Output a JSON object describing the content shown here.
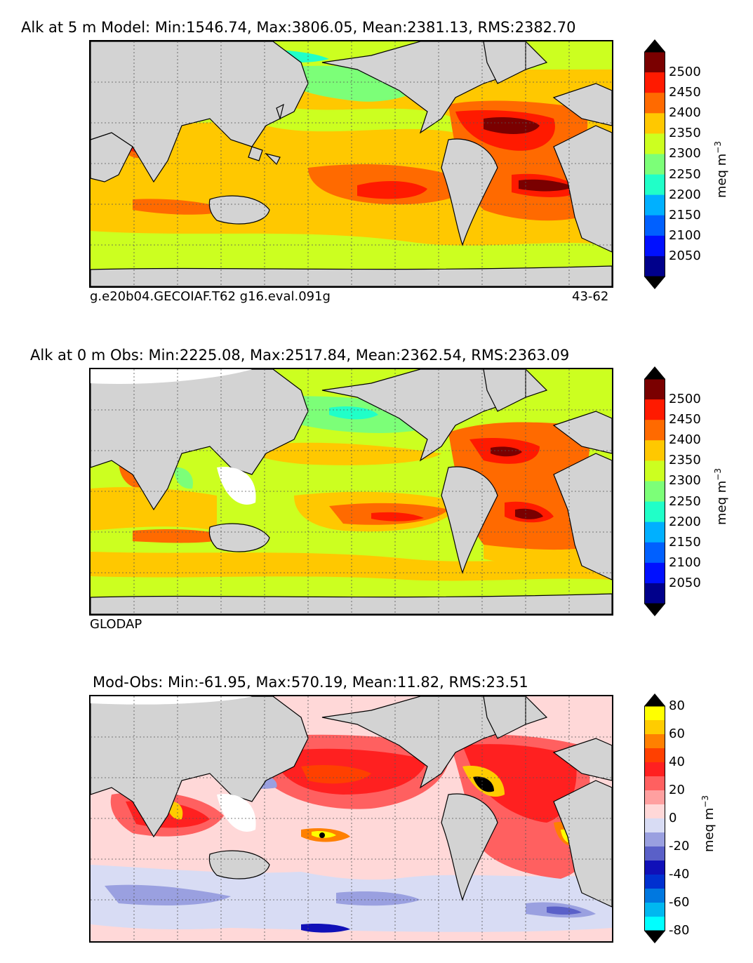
{
  "panels": [
    {
      "title": "Alk at 5 m Model: Min:1546.74, Max:3806.05, Mean:2381.13, RMS:2382.70",
      "caption_left": "g.e20b04.GECOIAF.T62 g16.eval.091g",
      "caption_right": "43-62",
      "colorbar": {
        "label": "meq m",
        "label_exp": "−3",
        "ticks": [
          "2500",
          "2450",
          "2400",
          "2350",
          "2300",
          "2250",
          "2200",
          "2150",
          "2100",
          "2050"
        ],
        "colors": [
          "#7a0000",
          "#ff1a00",
          "#ff6a00",
          "#ffc800",
          "#ccff20",
          "#7cff78",
          "#20ffc8",
          "#00b0ff",
          "#0060ff",
          "#0010ff",
          "#00008b"
        ]
      }
    },
    {
      "title": "Alk at 0 m Obs: Min:2225.08, Max:2517.84, Mean:2362.54, RMS:2363.09",
      "caption_left": "GLODAP",
      "caption_right": "",
      "colorbar": {
        "label": "meq m",
        "label_exp": "−3",
        "ticks": [
          "2500",
          "2450",
          "2400",
          "2350",
          "2300",
          "2250",
          "2200",
          "2150",
          "2100",
          "2050"
        ],
        "colors": [
          "#7a0000",
          "#ff1a00",
          "#ff6a00",
          "#ffc800",
          "#ccff20",
          "#7cff78",
          "#20ffc8",
          "#00b0ff",
          "#0060ff",
          "#0010ff",
          "#00008b"
        ]
      }
    },
    {
      "title": "Mod-Obs: Min:-61.95, Max:570.19, Mean:11.82, RMS:23.51",
      "caption_left": "",
      "caption_right": "",
      "colorbar": {
        "label": "meq m",
        "label_exp": "−3",
        "ticks": [
          "80",
          "60",
          "40",
          "20",
          "0",
          "-20",
          "-40",
          "-60",
          "-80"
        ],
        "colors": [
          "#ffff00",
          "#ffcc00",
          "#ff8000",
          "#ff4000",
          "#ff2020",
          "#ff6060",
          "#ffa0a0",
          "#ffd8d8",
          "#d8dcf4",
          "#9aa0e0",
          "#5a60c8",
          "#1010b8",
          "#0030d0",
          "#0078e0",
          "#00b8f0",
          "#00ffff"
        ]
      }
    }
  ]
}
